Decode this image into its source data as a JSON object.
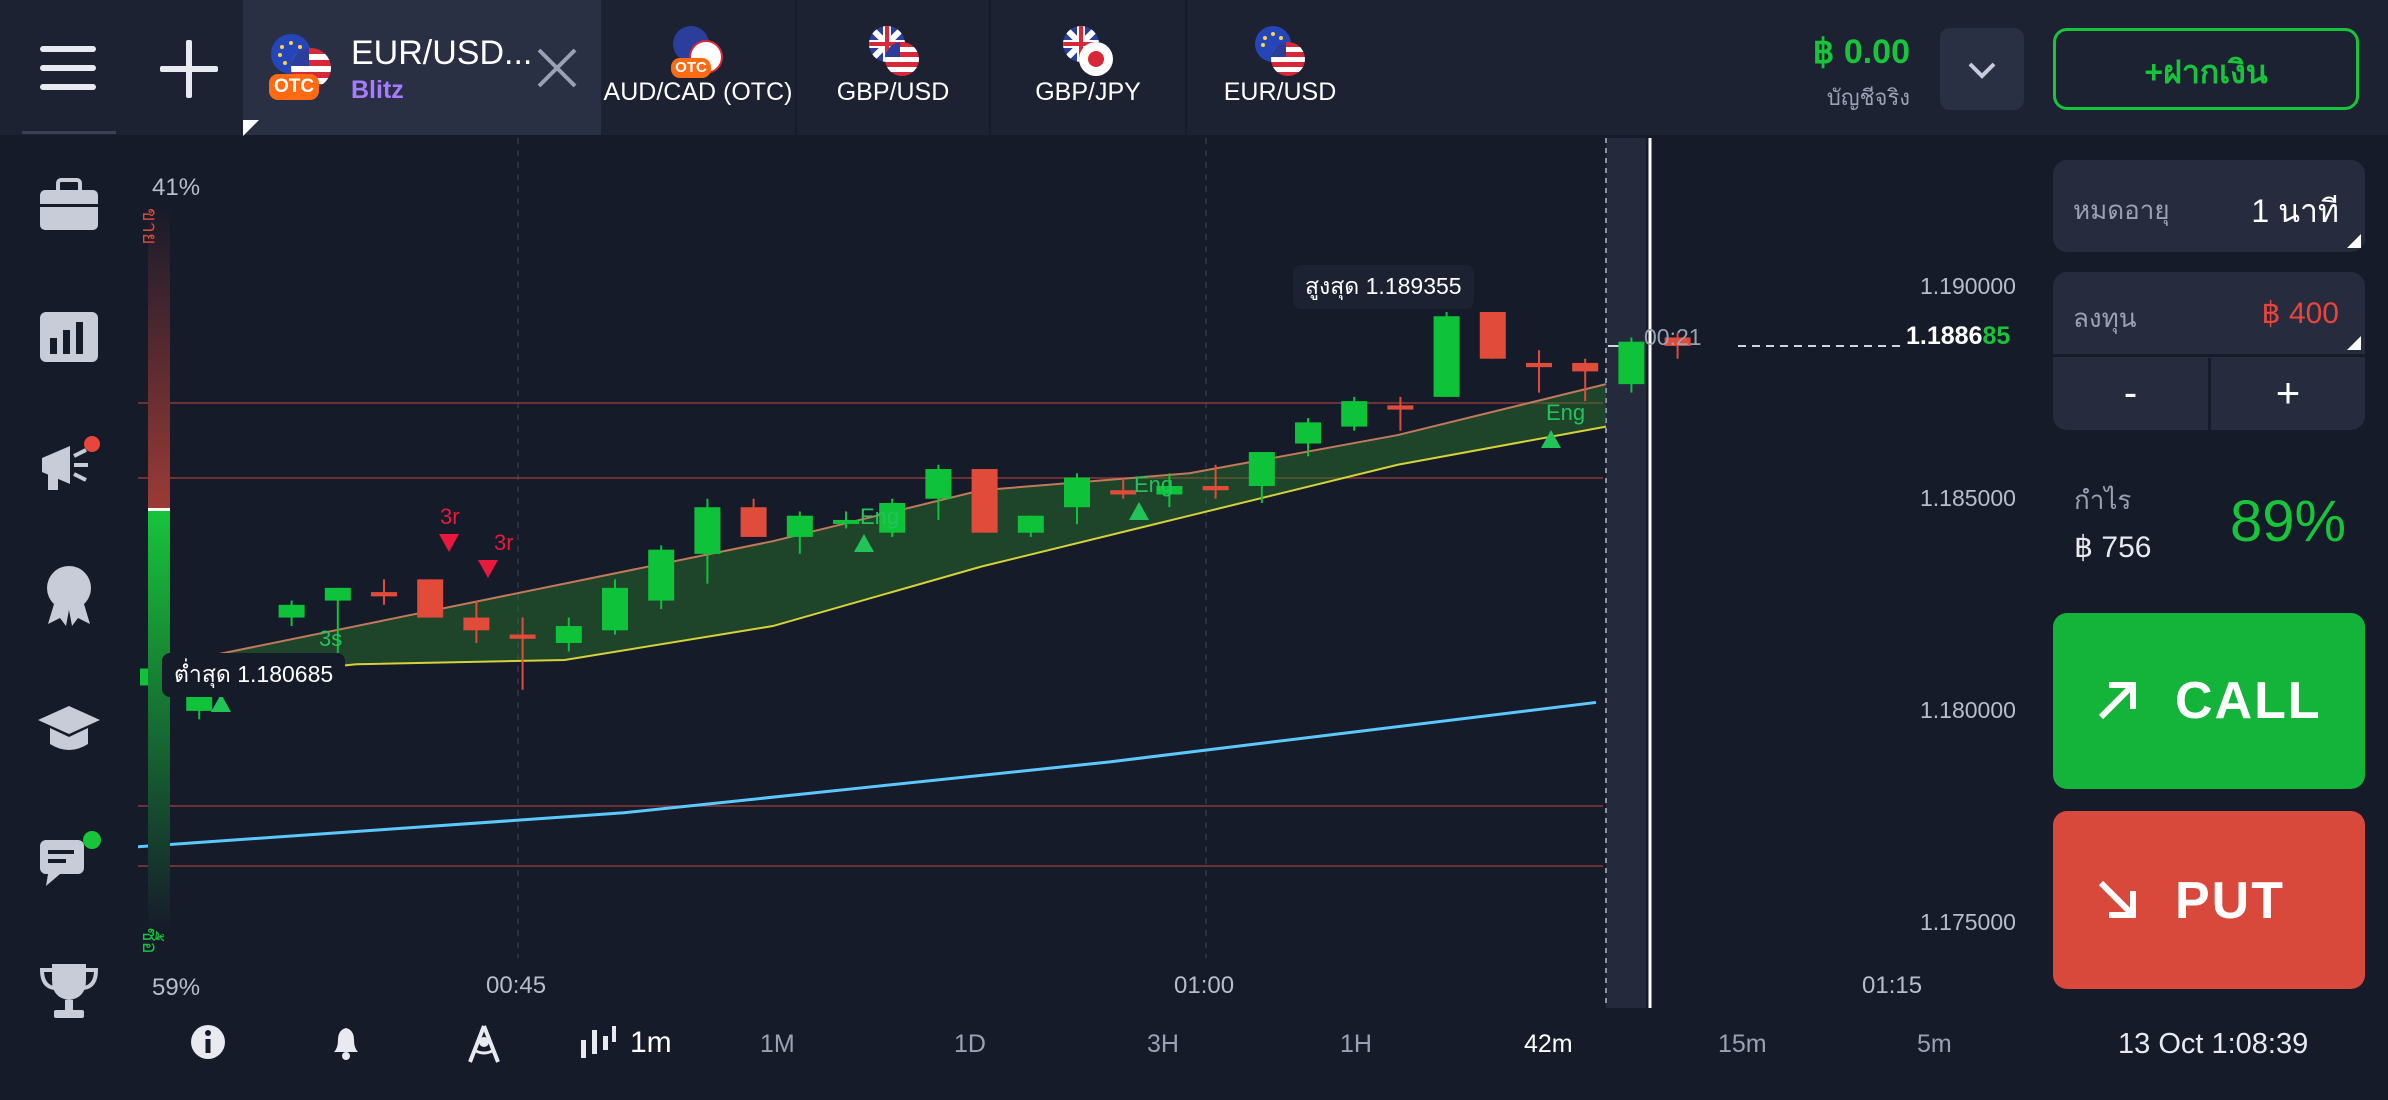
{
  "header": {
    "active_tab": {
      "title": "EUR/USD...",
      "subtitle": "Blitz",
      "badge": "OTC"
    },
    "tabs": [
      {
        "label": "AUD/CAD (OTC)",
        "badge": "OTC"
      },
      {
        "label": "GBP/USD"
      },
      {
        "label": "GBP/JPY"
      },
      {
        "label": "EUR/USD"
      }
    ],
    "balance": "฿ 0.00",
    "account_type": "บัญชีจริง",
    "deposit_label": "+ฝากเงิน"
  },
  "sidebar": {
    "items": [
      "briefcase-icon",
      "bar-chart-icon",
      "megaphone-icon",
      "award-icon",
      "graduation-cap-icon",
      "chat-icon",
      "trophy-icon"
    ]
  },
  "chart": {
    "sentiment_top": "41%",
    "sentiment_bottom": "59%",
    "sell_label": "ขาย",
    "buy_label": "ซื้อ",
    "high_label": "สูงสุด 1.189355",
    "low_label": "ต่ำสุด 1.180685",
    "current_price_main": "1.1886",
    "current_price_tail": "85",
    "countdown": "00:21",
    "price_axis": [
      "1.190000",
      "1.185000",
      "1.180000",
      "1.175000"
    ],
    "time_axis": [
      "00:45",
      "01:00",
      "01:15"
    ],
    "pattern_labels": {
      "r1": "3r",
      "r2": "3r",
      "s1": "3s",
      "eng1": "Eng",
      "eng2": "Eng",
      "eng3": "Eng"
    }
  },
  "chart_data": {
    "type": "candlestick",
    "title": "",
    "ylim": [
      1.173,
      1.1935
    ],
    "yticks": [
      1.19,
      1.185,
      1.18,
      1.175
    ],
    "xticks": [
      "00:45",
      "01:00",
      "01:15"
    ],
    "grid": true,
    "candles": [
      {
        "o": 1.1806,
        "h": 1.1812,
        "l": 1.18,
        "c": 1.181
      },
      {
        "o": 1.18,
        "h": 1.1808,
        "l": 1.1798,
        "c": 1.1807
      },
      {
        "o": 1.1808,
        "h": 1.1812,
        "l": 1.1806,
        "c": 1.1811
      },
      {
        "o": 1.1822,
        "h": 1.1826,
        "l": 1.182,
        "c": 1.1825
      },
      {
        "o": 1.1826,
        "h": 1.1829,
        "l": 1.1812,
        "c": 1.1829
      },
      {
        "o": 1.1828,
        "h": 1.1831,
        "l": 1.1825,
        "c": 1.1827
      },
      {
        "o": 1.1831,
        "h": 1.1831,
        "l": 1.1822,
        "c": 1.1822
      },
      {
        "o": 1.1822,
        "h": 1.1826,
        "l": 1.1816,
        "c": 1.1819
      },
      {
        "o": 1.1818,
        "h": 1.1822,
        "l": 1.1805,
        "c": 1.1817
      },
      {
        "o": 1.1816,
        "h": 1.1822,
        "l": 1.1814,
        "c": 1.182
      },
      {
        "o": 1.1819,
        "h": 1.1831,
        "l": 1.1818,
        "c": 1.1829
      },
      {
        "o": 1.1826,
        "h": 1.1839,
        "l": 1.1824,
        "c": 1.1838
      },
      {
        "o": 1.1837,
        "h": 1.185,
        "l": 1.183,
        "c": 1.1848
      },
      {
        "o": 1.1848,
        "h": 1.185,
        "l": 1.1841,
        "c": 1.1841
      },
      {
        "o": 1.1841,
        "h": 1.1847,
        "l": 1.1837,
        "c": 1.1846
      },
      {
        "o": 1.1845,
        "h": 1.1847,
        "l": 1.1843,
        "c": 1.1845
      },
      {
        "o": 1.1842,
        "h": 1.185,
        "l": 1.1841,
        "c": 1.1849
      },
      {
        "o": 1.185,
        "h": 1.1858,
        "l": 1.1845,
        "c": 1.1857
      },
      {
        "o": 1.1857,
        "h": 1.1857,
        "l": 1.1842,
        "c": 1.1842
      },
      {
        "o": 1.1842,
        "h": 1.1846,
        "l": 1.1841,
        "c": 1.1846
      },
      {
        "o": 1.1848,
        "h": 1.1856,
        "l": 1.1844,
        "c": 1.1855
      },
      {
        "o": 1.1852,
        "h": 1.1855,
        "l": 1.185,
        "c": 1.1851
      },
      {
        "o": 1.1851,
        "h": 1.1856,
        "l": 1.1848,
        "c": 1.1853
      },
      {
        "o": 1.1853,
        "h": 1.1858,
        "l": 1.185,
        "c": 1.1852
      },
      {
        "o": 1.1853,
        "h": 1.186,
        "l": 1.1849,
        "c": 1.1861
      },
      {
        "o": 1.1863,
        "h": 1.1869,
        "l": 1.186,
        "c": 1.1868
      },
      {
        "o": 1.1867,
        "h": 1.1874,
        "l": 1.1866,
        "c": 1.1873
      },
      {
        "o": 1.1872,
        "h": 1.1874,
        "l": 1.1866,
        "c": 1.1871
      },
      {
        "o": 1.1874,
        "h": 1.1894,
        "l": 1.1874,
        "c": 1.1893
      },
      {
        "o": 1.1894,
        "h": 1.1894,
        "l": 1.1883,
        "c": 1.1883
      },
      {
        "o": 1.1882,
        "h": 1.1885,
        "l": 1.1875,
        "c": 1.1881
      },
      {
        "o": 1.1882,
        "h": 1.1883,
        "l": 1.1873,
        "c": 1.188
      },
      {
        "o": 1.1877,
        "h": 1.1888,
        "l": 1.1875,
        "c": 1.1887
      },
      {
        "o": 1.1888,
        "h": 1.1889,
        "l": 1.1883,
        "c": 1.1886
      }
    ],
    "band_upper": [
      1.181,
      1.182,
      1.183,
      1.184,
      1.1852,
      1.1856,
      1.1865,
      1.1877
    ],
    "band_lower": [
      1.1806,
      1.1811,
      1.1812,
      1.182,
      1.1834,
      1.1846,
      1.1858,
      1.1867
    ],
    "slow_line": [
      1.1768,
      1.1772,
      1.1776,
      1.1782,
      1.1788,
      1.1795,
      1.1802
    ]
  },
  "toolbar": {
    "interval": "1m",
    "timeframes": [
      "1M",
      "1D",
      "3H",
      "1H",
      "42m",
      "15m",
      "5m"
    ],
    "active_timeframe": "42m",
    "datetime": "13 Oct 1:08:39"
  },
  "trade_panel": {
    "expiry_label": "หมดอายุ",
    "expiry_value": "1 นาที",
    "investment_label": "ลงทุน",
    "investment_value": "฿ 400",
    "minus": "-",
    "plus": "+",
    "profit_label": "กำไร",
    "profit_amount": "฿ 756",
    "profit_percent": "89%",
    "call_label": "CALL",
    "put_label": "PUT",
    "colors": {
      "call": "#14b33a",
      "put": "#d9493b",
      "accent": "#17c43a"
    }
  }
}
